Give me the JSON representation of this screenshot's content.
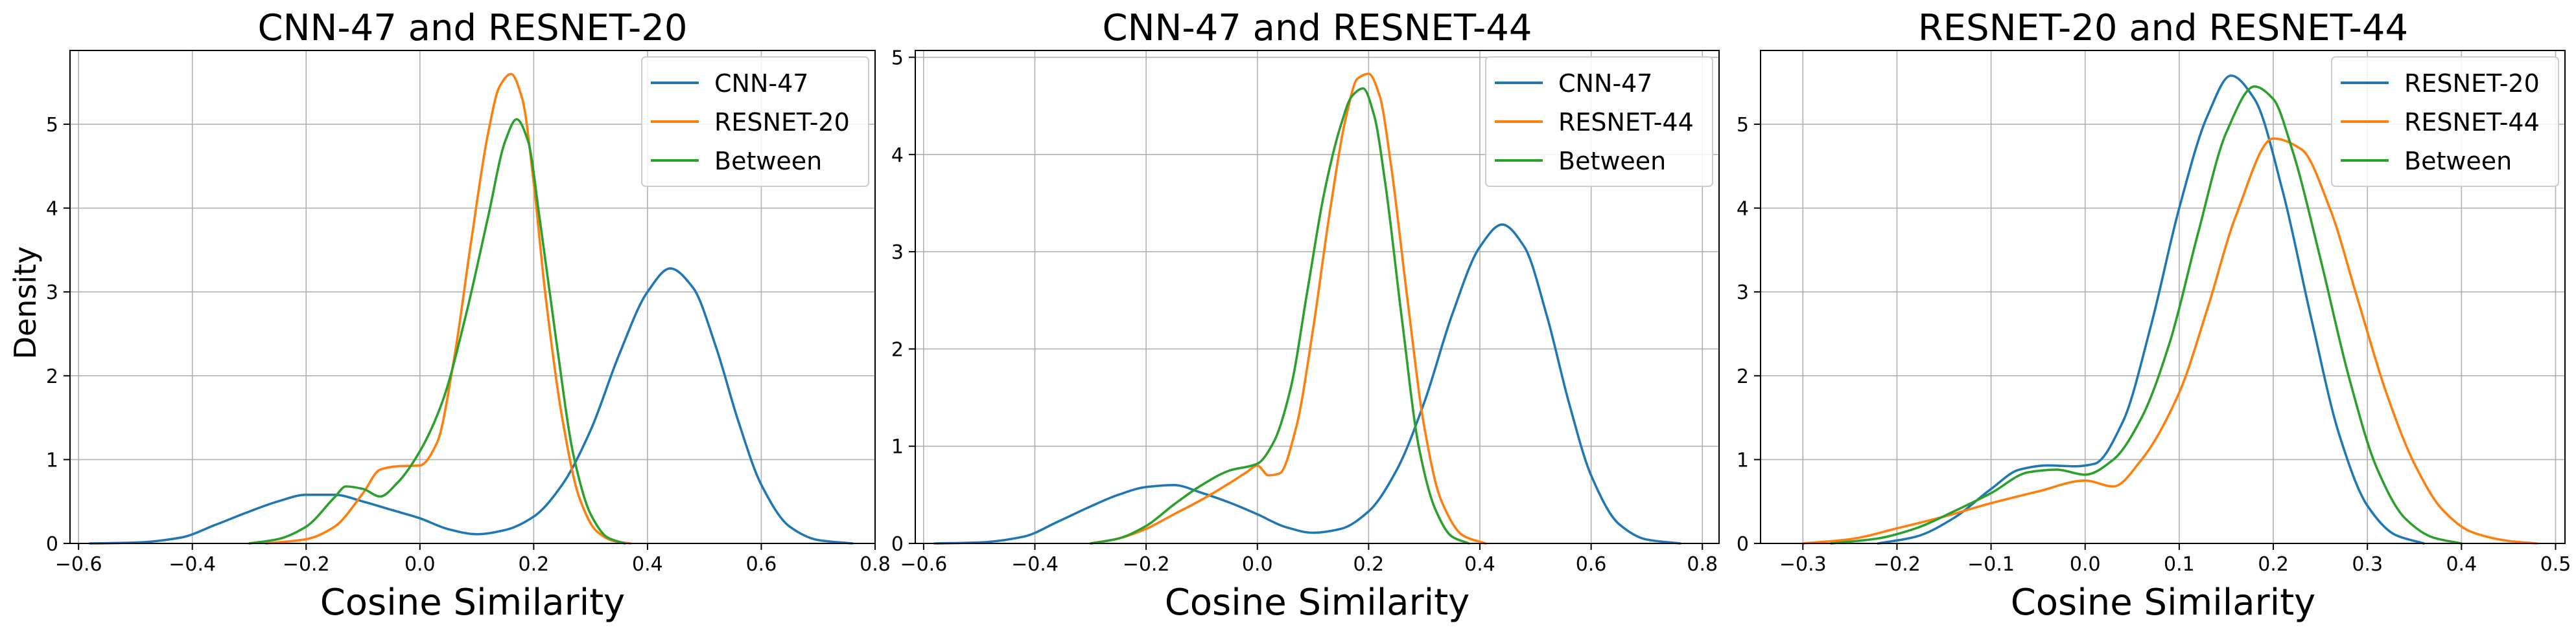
{
  "figure": {
    "ylabel_shared": "Density"
  },
  "chart_data": [
    {
      "type": "line",
      "title": "CNN-47 and RESNET-20",
      "xlabel": "Cosine Similarity",
      "ylabel": "Density",
      "xlim": [
        -0.615,
        0.8
      ],
      "ylim": [
        0,
        5.88
      ],
      "xticks": [
        "−0.6",
        "−0.4",
        "−0.2",
        "0.0",
        "0.2",
        "0.4",
        "0.6",
        "0.8"
      ],
      "xtick_values": [
        -0.6,
        -0.4,
        -0.2,
        0.0,
        0.2,
        0.4,
        0.6,
        0.8
      ],
      "yticks": [
        "0",
        "1",
        "2",
        "3",
        "4",
        "5"
      ],
      "ytick_values": [
        0,
        1,
        2,
        3,
        4,
        5
      ],
      "grid": true,
      "legend_position": "top-right",
      "series": [
        {
          "name": "CNN-47",
          "color": "#1f77b4",
          "x": [
            -0.58,
            -0.5,
            -0.42,
            -0.36,
            -0.3,
            -0.25,
            -0.2,
            -0.15,
            -0.1,
            -0.05,
            0.0,
            0.05,
            0.1,
            0.15,
            0.2,
            0.25,
            0.3,
            0.35,
            0.4,
            0.44,
            0.48,
            0.52,
            0.56,
            0.6,
            0.65,
            0.7,
            0.76
          ],
          "y": [
            0.0,
            0.01,
            0.07,
            0.22,
            0.38,
            0.5,
            0.58,
            0.58,
            0.5,
            0.4,
            0.3,
            0.17,
            0.11,
            0.16,
            0.32,
            0.7,
            1.35,
            2.25,
            3.0,
            3.28,
            3.05,
            2.35,
            1.45,
            0.7,
            0.2,
            0.04,
            0.0
          ]
        },
        {
          "name": "RESNET-20",
          "color": "#ff7f0e",
          "x": [
            -0.27,
            -0.2,
            -0.15,
            -0.1,
            -0.07,
            -0.04,
            0.0,
            0.03,
            0.06,
            0.09,
            0.12,
            0.14,
            0.16,
            0.18,
            0.2,
            0.22,
            0.25,
            0.28,
            0.31,
            0.34,
            0.37
          ],
          "y": [
            0.0,
            0.05,
            0.2,
            0.6,
            0.88,
            0.92,
            0.93,
            1.2,
            2.2,
            3.6,
            4.9,
            5.45,
            5.6,
            5.3,
            4.3,
            3.0,
            1.5,
            0.55,
            0.15,
            0.03,
            0.0
          ]
        },
        {
          "name": "Between",
          "color": "#2ca02c",
          "x": [
            -0.3,
            -0.25,
            -0.2,
            -0.15,
            -0.13,
            -0.1,
            -0.07,
            -0.04,
            0.0,
            0.04,
            0.08,
            0.12,
            0.15,
            0.17,
            0.19,
            0.21,
            0.24,
            0.27,
            0.3,
            0.33,
            0.36
          ],
          "y": [
            0.0,
            0.05,
            0.2,
            0.55,
            0.68,
            0.65,
            0.56,
            0.72,
            1.1,
            1.7,
            2.7,
            3.9,
            4.8,
            5.06,
            4.8,
            3.9,
            2.4,
            1.05,
            0.35,
            0.07,
            0.0
          ]
        }
      ]
    },
    {
      "type": "line",
      "title": "CNN-47 and RESNET-44",
      "xlabel": "Cosine Similarity",
      "ylabel": "",
      "xlim": [
        -0.615,
        0.83
      ],
      "ylim": [
        0,
        5.07
      ],
      "xticks": [
        "−0.6",
        "−0.4",
        "−0.2",
        "0.0",
        "0.2",
        "0.4",
        "0.6",
        "0.8"
      ],
      "xtick_values": [
        -0.6,
        -0.4,
        -0.2,
        0.0,
        0.2,
        0.4,
        0.6,
        0.8
      ],
      "yticks": [
        "0",
        "1",
        "2",
        "3",
        "4",
        "5"
      ],
      "ytick_values": [
        0,
        1,
        2,
        3,
        4,
        5
      ],
      "grid": true,
      "legend_position": "top-right",
      "series": [
        {
          "name": "CNN-47",
          "color": "#1f77b4",
          "x": [
            -0.58,
            -0.5,
            -0.42,
            -0.36,
            -0.3,
            -0.25,
            -0.2,
            -0.15,
            -0.1,
            -0.05,
            0.0,
            0.05,
            0.1,
            0.15,
            0.2,
            0.25,
            0.3,
            0.35,
            0.4,
            0.44,
            0.48,
            0.52,
            0.56,
            0.6,
            0.65,
            0.7,
            0.76
          ],
          "y": [
            0.0,
            0.01,
            0.07,
            0.22,
            0.38,
            0.5,
            0.58,
            0.6,
            0.52,
            0.42,
            0.3,
            0.17,
            0.11,
            0.15,
            0.33,
            0.75,
            1.45,
            2.35,
            3.05,
            3.28,
            3.05,
            2.35,
            1.45,
            0.7,
            0.2,
            0.04,
            0.0
          ]
        },
        {
          "name": "RESNET-44",
          "color": "#ff7f0e",
          "x": [
            -0.3,
            -0.25,
            -0.2,
            -0.15,
            -0.1,
            -0.05,
            -0.02,
            0.0,
            0.02,
            0.04,
            0.07,
            0.1,
            0.13,
            0.16,
            0.18,
            0.2,
            0.22,
            0.24,
            0.27,
            0.3,
            0.33,
            0.37,
            0.41
          ],
          "y": [
            0.0,
            0.05,
            0.15,
            0.3,
            0.45,
            0.62,
            0.73,
            0.8,
            0.7,
            0.72,
            1.2,
            2.2,
            3.4,
            4.4,
            4.78,
            4.83,
            4.6,
            3.9,
            2.5,
            1.2,
            0.45,
            0.08,
            0.0
          ]
        },
        {
          "name": "Between",
          "color": "#2ca02c",
          "x": [
            -0.3,
            -0.25,
            -0.2,
            -0.15,
            -0.1,
            -0.05,
            0.0,
            0.03,
            0.06,
            0.09,
            0.12,
            0.15,
            0.17,
            0.19,
            0.21,
            0.23,
            0.26,
            0.29,
            0.32,
            0.35,
            0.38
          ],
          "y": [
            0.0,
            0.05,
            0.18,
            0.4,
            0.6,
            0.75,
            0.82,
            1.05,
            1.6,
            2.6,
            3.6,
            4.3,
            4.6,
            4.68,
            4.4,
            3.7,
            2.3,
            1.0,
            0.35,
            0.07,
            0.0
          ]
        }
      ]
    },
    {
      "type": "line",
      "title": "RESNET-20 and RESNET-44",
      "xlabel": "Cosine Similarity",
      "ylabel": "",
      "xlim": [
        -0.345,
        0.51
      ],
      "ylim": [
        0,
        5.88
      ],
      "xticks": [
        "−0.3",
        "−0.2",
        "−0.1",
        "0.0",
        "0.1",
        "0.2",
        "0.3",
        "0.4",
        "0.5"
      ],
      "xtick_values": [
        -0.3,
        -0.2,
        -0.1,
        0.0,
        0.1,
        0.2,
        0.3,
        0.4,
        0.5
      ],
      "yticks": [
        "0",
        "1",
        "2",
        "3",
        "4",
        "5"
      ],
      "ytick_values": [
        0,
        1,
        2,
        3,
        4,
        5
      ],
      "grid": true,
      "legend_position": "top-right",
      "series": [
        {
          "name": "RESNET-20",
          "color": "#1f77b4",
          "x": [
            -0.22,
            -0.18,
            -0.14,
            -0.1,
            -0.07,
            -0.04,
            -0.01,
            0.01,
            0.04,
            0.07,
            0.1,
            0.13,
            0.155,
            0.18,
            0.21,
            0.24,
            0.27,
            0.3,
            0.33,
            0.36
          ],
          "y": [
            0.0,
            0.08,
            0.3,
            0.65,
            0.88,
            0.93,
            0.92,
            0.95,
            1.45,
            2.6,
            4.0,
            5.1,
            5.58,
            5.3,
            4.2,
            2.7,
            1.3,
            0.45,
            0.1,
            0.0
          ]
        },
        {
          "name": "RESNET-44",
          "color": "#ff7f0e",
          "x": [
            -0.3,
            -0.25,
            -0.2,
            -0.15,
            -0.1,
            -0.05,
            0.0,
            0.03,
            0.06,
            0.1,
            0.13,
            0.16,
            0.2,
            0.23,
            0.26,
            0.29,
            0.32,
            0.35,
            0.38,
            0.41,
            0.45,
            0.48
          ],
          "y": [
            0.0,
            0.05,
            0.18,
            0.32,
            0.48,
            0.62,
            0.75,
            0.68,
            1.0,
            1.8,
            2.8,
            3.9,
            4.83,
            4.7,
            4.0,
            2.9,
            1.8,
            0.95,
            0.4,
            0.14,
            0.03,
            0.0
          ]
        },
        {
          "name": "Between",
          "color": "#2ca02c",
          "x": [
            -0.27,
            -0.22,
            -0.18,
            -0.14,
            -0.1,
            -0.06,
            -0.03,
            0.0,
            0.03,
            0.06,
            0.09,
            0.12,
            0.15,
            0.18,
            0.2,
            0.22,
            0.25,
            0.28,
            0.31,
            0.34,
            0.37,
            0.4
          ],
          "y": [
            0.0,
            0.06,
            0.18,
            0.38,
            0.6,
            0.85,
            0.88,
            0.82,
            1.0,
            1.5,
            2.4,
            3.7,
            4.9,
            5.45,
            5.3,
            4.7,
            3.4,
            2.0,
            0.9,
            0.3,
            0.07,
            0.0
          ]
        }
      ]
    }
  ]
}
